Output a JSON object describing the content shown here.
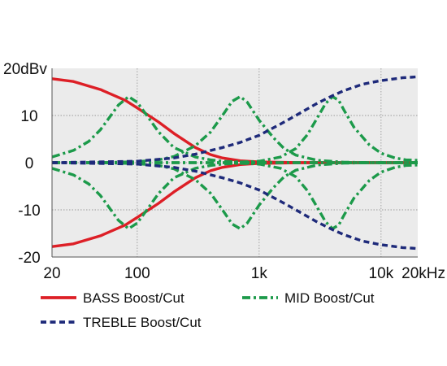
{
  "chart_data": {
    "type": "line",
    "x_scale": "log",
    "xlim": [
      20,
      20000
    ],
    "ylim": [
      -20,
      20
    ],
    "grid": true,
    "legend_position": "bottom",
    "x_ticks": [
      {
        "value": 20,
        "label": "20"
      },
      {
        "value": 100,
        "label": "100"
      },
      {
        "value": 1000,
        "label": "1k"
      },
      {
        "value": 10000,
        "label": "10k"
      },
      {
        "value": 20000,
        "label": "20kHz"
      }
    ],
    "y_ticks": [
      {
        "value": 20,
        "label": "20dBv"
      },
      {
        "value": 10,
        "label": "10"
      },
      {
        "value": 0,
        "label": "0"
      },
      {
        "value": -10,
        "label": "-10"
      },
      {
        "value": -20,
        "label": "-20"
      }
    ],
    "series": [
      {
        "name": "BASS Boost/Cut",
        "color": "#dd1f26",
        "style": "solid",
        "curves": [
          {
            "x": [
              20,
              30,
              50,
              80,
              100,
              150,
              200,
              300,
              400,
              500,
              700,
              1000,
              2000,
              5000,
              20000
            ],
            "y": [
              17.8,
              17.2,
              15.5,
              13.2,
              11.6,
              8.6,
              6.2,
              3.2,
              1.7,
              1.0,
              0.4,
              0.15,
              0.03,
              0,
              0
            ]
          },
          {
            "x": [
              20,
              30,
              50,
              80,
              100,
              150,
              200,
              300,
              400,
              500,
              700,
              1000,
              2000,
              5000,
              20000
            ],
            "y": [
              -17.8,
              -17.2,
              -15.5,
              -13.2,
              -11.6,
              -8.6,
              -6.2,
              -3.2,
              -1.7,
              -1.0,
              -0.4,
              -0.15,
              -0.03,
              0,
              0
            ]
          }
        ]
      },
      {
        "name": "MID Boost/Cut",
        "color": "#1c9a4a",
        "style": "dashdot",
        "curves": [
          {
            "x": [
              20,
              30,
              40,
              50,
              60,
              70,
              85,
              100,
              120,
              150,
              200,
              300,
              400,
              500,
              600,
              800,
              1000,
              2000,
              5000,
              20000
            ],
            "y": [
              1.2,
              2.6,
              4.5,
              7.0,
              9.8,
              12.2,
              14.0,
              12.8,
              10.0,
              6.5,
              3.2,
              1.2,
              0.6,
              0.3,
              0.2,
              0.1,
              0,
              0,
              0,
              0
            ]
          },
          {
            "x": [
              20,
              30,
              40,
              50,
              60,
              70,
              85,
              100,
              120,
              150,
              200,
              300,
              400,
              500,
              600,
              800,
              1000,
              2000,
              5000,
              20000
            ],
            "y": [
              -1.2,
              -2.6,
              -4.5,
              -7.0,
              -9.8,
              -12.2,
              -14.0,
              -12.8,
              -10.0,
              -6.5,
              -3.2,
              -1.2,
              -0.6,
              -0.3,
              -0.2,
              -0.1,
              0,
              0,
              0,
              0
            ]
          },
          {
            "x": [
              20,
              50,
              100,
              150,
              200,
              300,
              400,
              500,
              600,
              700,
              800,
              1000,
              1300,
              1600,
              2000,
              3000,
              5000,
              10000,
              20000
            ],
            "y": [
              0,
              0,
              0.2,
              0.6,
              1.3,
              3.6,
              6.5,
              10.0,
              13.0,
              14.0,
              12.8,
              9.0,
              5.4,
              3.0,
              1.6,
              0.5,
              0.1,
              0,
              0
            ]
          },
          {
            "x": [
              20,
              50,
              100,
              150,
              200,
              300,
              400,
              500,
              600,
              700,
              800,
              1000,
              1300,
              1600,
              2000,
              3000,
              5000,
              10000,
              20000
            ],
            "y": [
              0,
              0,
              -0.2,
              -0.6,
              -1.3,
              -3.6,
              -6.5,
              -10.0,
              -13.0,
              -14.0,
              -12.8,
              -9.0,
              -5.4,
              -3.0,
              -1.6,
              -0.5,
              -0.1,
              0,
              0
            ]
          },
          {
            "x": [
              20,
              500,
              1000,
              1500,
              2000,
              2500,
              3000,
              3500,
              4000,
              4500,
              5000,
              6000,
              8000,
              10000,
              13000,
              16000,
              20000
            ],
            "y": [
              0,
              0,
              0.3,
              1.2,
              3.0,
              6.0,
              9.5,
              12.5,
              14.0,
              13.2,
              11.0,
              7.5,
              3.8,
              2.0,
              1.0,
              0.6,
              0.5
            ]
          },
          {
            "x": [
              20,
              500,
              1000,
              1500,
              2000,
              2500,
              3000,
              3500,
              4000,
              4500,
              5000,
              6000,
              8000,
              10000,
              13000,
              16000,
              20000
            ],
            "y": [
              0,
              0,
              -0.3,
              -1.2,
              -3.0,
              -6.0,
              -9.5,
              -12.5,
              -14.0,
              -13.2,
              -11.0,
              -7.5,
              -3.8,
              -2.0,
              -1.0,
              -0.6,
              -0.5
            ]
          }
        ]
      },
      {
        "name": "TREBLE Boost/Cut",
        "color": "#1e2a7a",
        "style": "dashed",
        "curves": [
          {
            "x": [
              20,
              100,
              200,
              300,
              500,
              700,
              1000,
              1500,
              2000,
              3000,
              4000,
              5000,
              7000,
              10000,
              15000,
              20000
            ],
            "y": [
              0,
              0.3,
              1.0,
              1.8,
              3.2,
              4.3,
              5.8,
              8.2,
              10.0,
              12.6,
              14.2,
              15.3,
              16.6,
              17.4,
              18.0,
              18.2
            ]
          },
          {
            "x": [
              20,
              100,
              200,
              300,
              500,
              700,
              1000,
              1500,
              2000,
              3000,
              4000,
              5000,
              7000,
              10000,
              15000,
              20000
            ],
            "y": [
              0,
              -0.3,
              -1.0,
              -1.8,
              -3.2,
              -4.3,
              -5.8,
              -8.2,
              -10.0,
              -12.6,
              -14.2,
              -15.3,
              -16.6,
              -17.4,
              -18.0,
              -18.2
            ]
          }
        ]
      }
    ]
  }
}
